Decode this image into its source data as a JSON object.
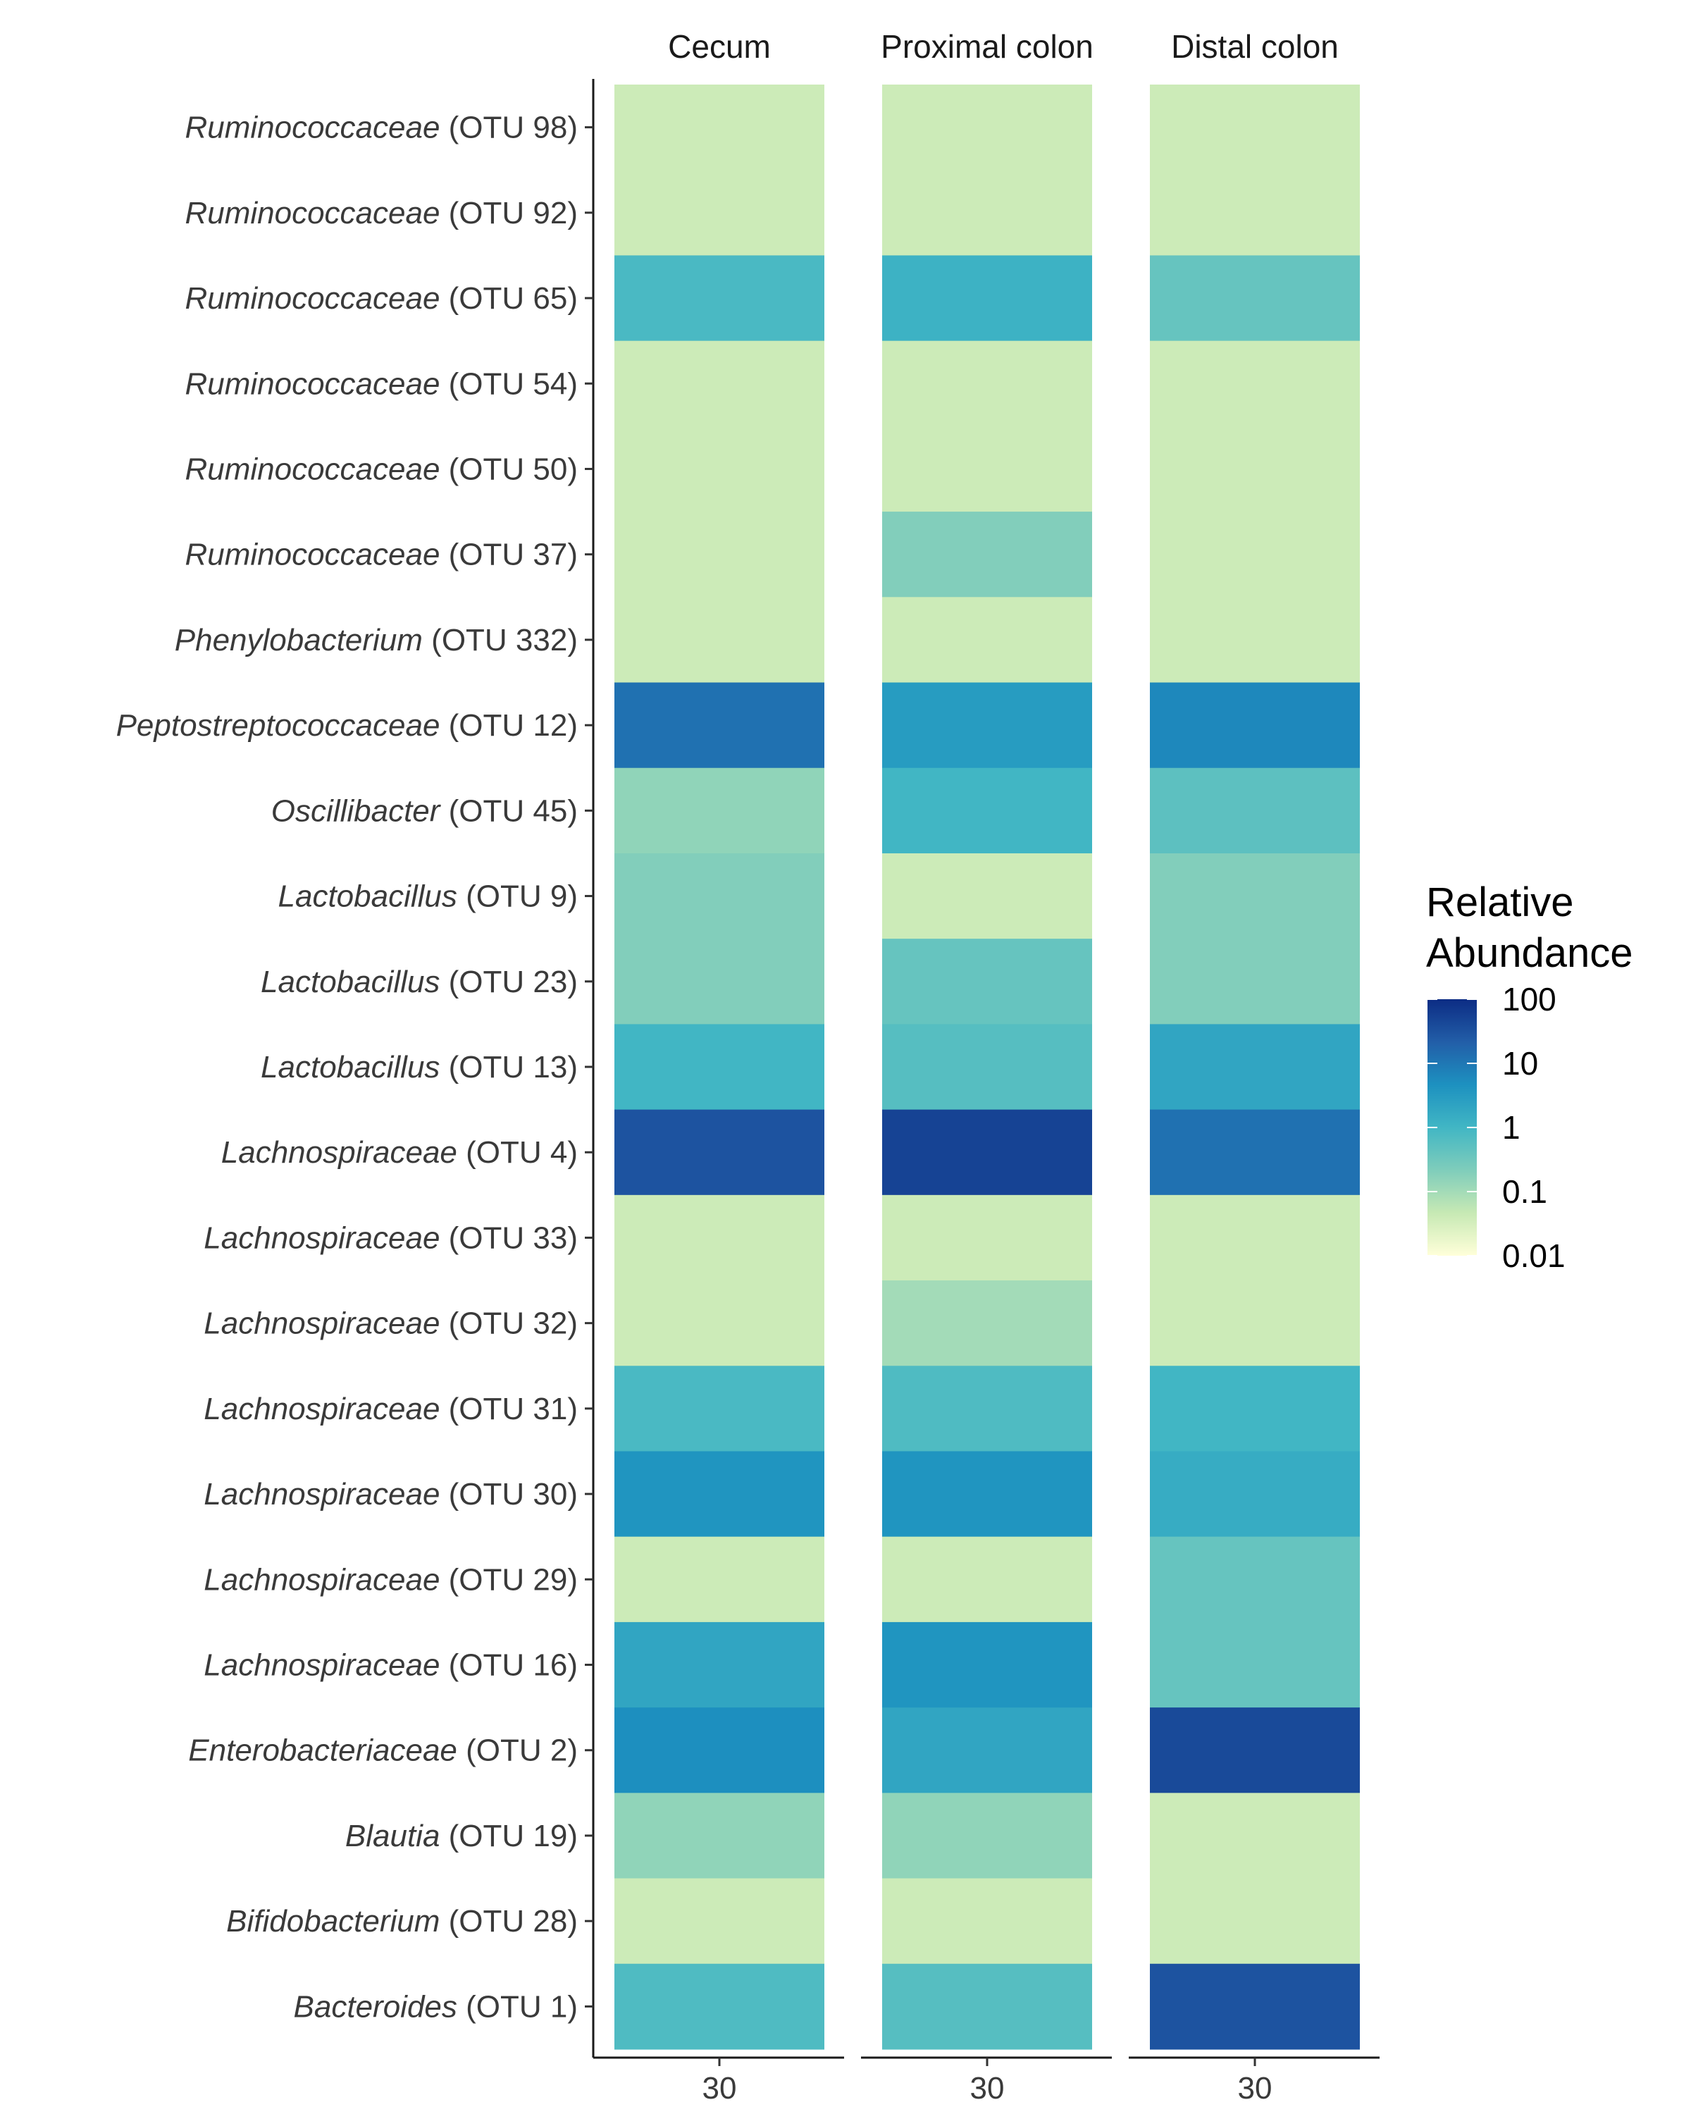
{
  "chart_data": {
    "type": "heatmap",
    "facets": [
      "Cecum",
      "Proximal colon",
      "Distal colon"
    ],
    "x_tick_label": "30",
    "rows": [
      {
        "taxon": "Ruminococcaceae",
        "otu": "(OTU 98)"
      },
      {
        "taxon": "Ruminococcaceae",
        "otu": "(OTU 92)"
      },
      {
        "taxon": "Ruminococcaceae",
        "otu": "(OTU 65)"
      },
      {
        "taxon": "Ruminococcaceae",
        "otu": "(OTU 54)"
      },
      {
        "taxon": "Ruminococcaceae",
        "otu": "(OTU 50)"
      },
      {
        "taxon": "Ruminococcaceae",
        "otu": "(OTU 37)"
      },
      {
        "taxon": "Phenylobacterium",
        "otu": "(OTU 332)"
      },
      {
        "taxon": "Peptostreptococcaceae",
        "otu": "(OTU 12)"
      },
      {
        "taxon": "Oscillibacter",
        "otu": "(OTU 45)"
      },
      {
        "taxon": "Lactobacillus",
        "otu": "(OTU 9)"
      },
      {
        "taxon": "Lactobacillus",
        "otu": "(OTU 23)"
      },
      {
        "taxon": "Lactobacillus",
        "otu": "(OTU 13)"
      },
      {
        "taxon": "Lachnospiraceae",
        "otu": "(OTU 4)"
      },
      {
        "taxon": "Lachnospiraceae",
        "otu": "(OTU 33)"
      },
      {
        "taxon": "Lachnospiraceae",
        "otu": "(OTU 32)"
      },
      {
        "taxon": "Lachnospiraceae",
        "otu": "(OTU 31)"
      },
      {
        "taxon": "Lachnospiraceae",
        "otu": "(OTU 30)"
      },
      {
        "taxon": "Lachnospiraceae",
        "otu": "(OTU 29)"
      },
      {
        "taxon": "Lachnospiraceae",
        "otu": "(OTU 16)"
      },
      {
        "taxon": "Enterobacteriaceae",
        "otu": "(OTU 2)"
      },
      {
        "taxon": "Blautia",
        "otu": "(OTU 19)"
      },
      {
        "taxon": "Bifidobacterium",
        "otu": "(OTU 28)"
      },
      {
        "taxon": "Bacteroides",
        "otu": "(OTU 1)"
      }
    ],
    "values": [
      [
        0.04,
        0.04,
        0.04
      ],
      [
        0.04,
        0.04,
        0.04
      ],
      [
        0.8,
        1.2,
        0.4
      ],
      [
        0.04,
        0.04,
        0.04
      ],
      [
        0.04,
        0.04,
        0.04
      ],
      [
        0.04,
        0.2,
        0.04
      ],
      [
        0.04,
        0.04,
        0.04
      ],
      [
        12,
        3,
        6
      ],
      [
        0.15,
        1,
        0.5
      ],
      [
        0.2,
        0.04,
        0.2
      ],
      [
        0.2,
        0.4,
        0.2
      ],
      [
        1,
        0.6,
        2
      ],
      [
        30,
        50,
        12
      ],
      [
        0.04,
        0.04,
        0.04
      ],
      [
        0.04,
        0.1,
        0.04
      ],
      [
        0.8,
        0.7,
        1
      ],
      [
        4,
        4,
        1.5
      ],
      [
        0.04,
        0.04,
        0.4
      ],
      [
        2,
        4,
        0.4
      ],
      [
        5,
        2,
        40
      ],
      [
        0.15,
        0.15,
        0.04
      ],
      [
        0.04,
        0.04,
        0.04
      ],
      [
        0.7,
        0.6,
        30
      ]
    ],
    "color_scale": {
      "log": true,
      "min": 0.01,
      "max": 100,
      "stops": [
        "#ffffd9",
        "#c7e9b4",
        "#7fcdbb",
        "#41b6c4",
        "#1d91c0",
        "#225ea8",
        "#0c2c84"
      ]
    },
    "legend": {
      "title_line1": "Relative",
      "title_line2": "Abundance",
      "ticks": [
        "100",
        "10",
        "1",
        "0.1",
        "0.01"
      ],
      "tick_values": [
        100,
        10,
        1,
        0.1,
        0.01
      ],
      "position": "right"
    },
    "grid": false
  }
}
